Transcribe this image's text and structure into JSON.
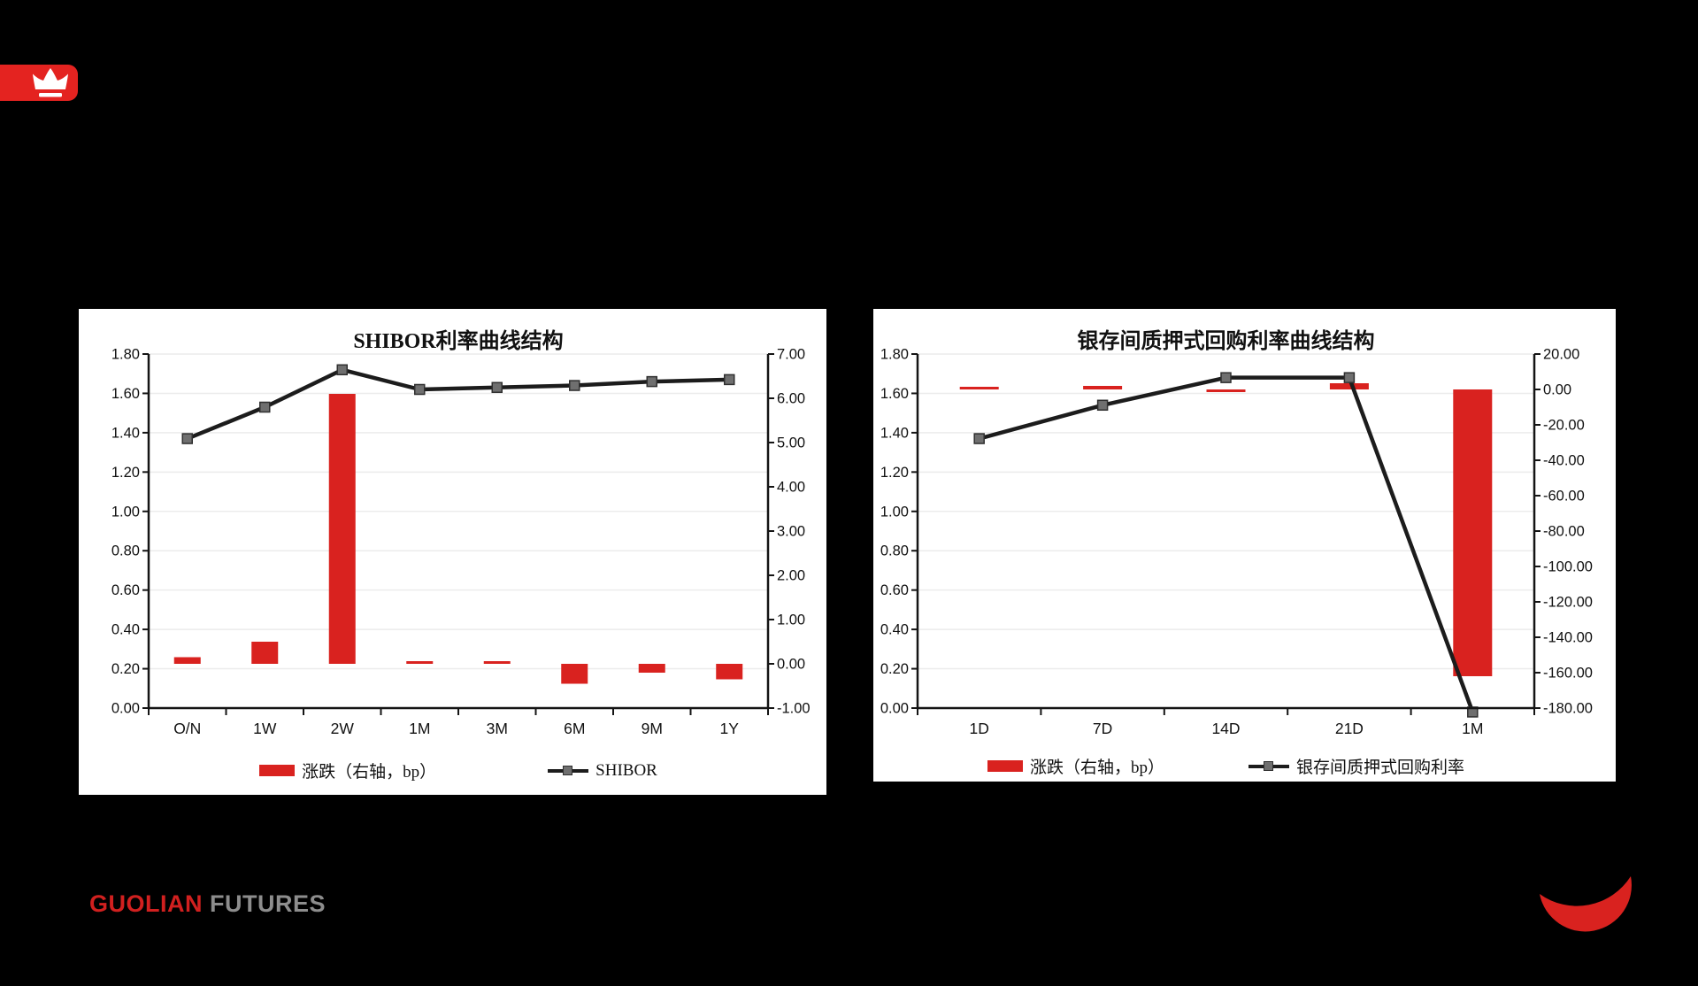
{
  "brand": {
    "footer": {
      "primary": "GUOLIAN",
      "secondary": "FUTURES"
    },
    "colors": {
      "accent_red": "#e42320",
      "footer_red": "#d1201f",
      "footer_gray": "#8d8d8d"
    },
    "icons": [
      "crown-icon",
      "crescent-logo-icon"
    ]
  },
  "chart_data": [
    {
      "type": "bar",
      "subtype": "bar+line combo, dual axis",
      "title": "SHIBOR利率曲线结构",
      "categories": [
        "O/N",
        "1W",
        "2W",
        "1M",
        "3M",
        "6M",
        "9M",
        "1Y"
      ],
      "left_axis": {
        "min": 0,
        "max": 1.8,
        "step": 0.2,
        "decimals": 2
      },
      "right_axis": {
        "min": -1,
        "max": 7,
        "step": 1,
        "decimals": 2
      },
      "grid": "horizontal",
      "legend_position": "bottom",
      "series": [
        {
          "name": "涨跌（右轴，bp）",
          "type": "bar",
          "axis": "right",
          "color": "#d9221f",
          "values": [
            0.15,
            0.5,
            6.1,
            0.05,
            0.05,
            -0.45,
            -0.2,
            -0.35
          ]
        },
        {
          "name": "SHIBOR",
          "type": "line",
          "axis": "left",
          "color": "#1c1c1c",
          "marker": "square",
          "marker_color": "#6f6f6f",
          "values": [
            1.37,
            1.53,
            1.72,
            1.62,
            1.63,
            1.64,
            1.66,
            1.67
          ]
        }
      ]
    },
    {
      "type": "bar",
      "subtype": "bar+line combo, dual axis",
      "title": "银存间质押式回购利率曲线结构",
      "categories": [
        "1D",
        "7D",
        "14D",
        "21D",
        "1M"
      ],
      "left_axis": {
        "min": 0,
        "max": 1.8,
        "step": 0.2,
        "decimals": 2
      },
      "right_axis": {
        "min": -180,
        "max": 20,
        "step": 20,
        "decimals": 2
      },
      "grid": "horizontal",
      "legend_position": "bottom",
      "series": [
        {
          "name": "涨跌（右轴，bp）",
          "type": "bar",
          "axis": "right",
          "color": "#d9221f",
          "values": [
            1,
            2,
            -1,
            3.5,
            -162
          ]
        },
        {
          "name": "银存间质押式回购利率",
          "type": "line",
          "axis": "left",
          "color": "#1c1c1c",
          "marker": "square",
          "marker_color": "#6f6f6f",
          "values": [
            1.37,
            1.54,
            1.68,
            1.68,
            -0.02
          ]
        }
      ]
    }
  ]
}
